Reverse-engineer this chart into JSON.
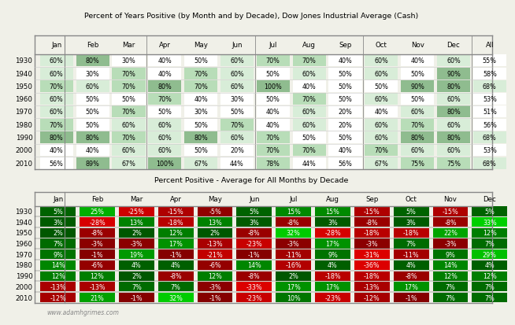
{
  "title1": "Percent of Years Positive (by Month and by Decade), Dow Jones Industrial Average (Cash)",
  "title2": "Percent Positive - Average for All Months by Decade",
  "watermark": "www.adamhgrimes.com",
  "cols1": [
    "Jan",
    "Feb",
    "Mar",
    "Apr",
    "May",
    "Jun",
    "Jul",
    "Aug",
    "Sep",
    "Oct",
    "Nov",
    "Dec",
    "All"
  ],
  "cols2": [
    "Jan",
    "Feb",
    "Mar",
    "Apr",
    "May",
    "Jun",
    "Jul",
    "Aug",
    "Sep",
    "Oct",
    "Nov",
    "Dec"
  ],
  "rows": [
    "1930",
    "1940",
    "1950",
    "1960",
    "1970",
    "1980",
    "1990",
    "2000",
    "2010"
  ],
  "table1": [
    [
      60,
      80,
      30,
      40,
      50,
      60,
      70,
      70,
      40,
      60,
      40,
      60,
      55
    ],
    [
      60,
      30,
      70,
      40,
      70,
      60,
      50,
      60,
      50,
      60,
      50,
      90,
      58
    ],
    [
      70,
      60,
      70,
      80,
      70,
      60,
      100,
      40,
      50,
      50,
      90,
      80,
      68
    ],
    [
      60,
      50,
      50,
      70,
      40,
      30,
      50,
      70,
      50,
      60,
      50,
      60,
      53
    ],
    [
      60,
      50,
      70,
      50,
      30,
      50,
      40,
      60,
      20,
      40,
      60,
      80,
      51
    ],
    [
      70,
      50,
      60,
      60,
      50,
      70,
      40,
      60,
      20,
      60,
      70,
      60,
      56
    ],
    [
      80,
      80,
      70,
      60,
      80,
      60,
      70,
      50,
      50,
      60,
      80,
      80,
      68
    ],
    [
      40,
      40,
      60,
      60,
      50,
      20,
      70,
      70,
      40,
      70,
      60,
      60,
      53
    ],
    [
      56,
      89,
      67,
      100,
      67,
      44,
      78,
      44,
      56,
      67,
      75,
      75,
      68
    ]
  ],
  "table2": [
    [
      5,
      25,
      -25,
      -15,
      -5,
      5,
      15,
      15,
      -15,
      5,
      -15,
      5
    ],
    [
      3,
      -28,
      13,
      -18,
      13,
      3,
      -8,
      3,
      -8,
      3,
      -8,
      33
    ],
    [
      2,
      -8,
      2,
      12,
      2,
      -8,
      32,
      -28,
      -18,
      -18,
      22,
      12
    ],
    [
      7,
      -3,
      -3,
      17,
      -13,
      -23,
      -3,
      17,
      -3,
      7,
      -3,
      7
    ],
    [
      9,
      -1,
      19,
      -1,
      -21,
      -1,
      -11,
      9,
      -31,
      -11,
      9,
      29
    ],
    [
      14,
      -6,
      4,
      4,
      -6,
      14,
      -16,
      4,
      -36,
      4,
      14,
      4
    ],
    [
      12,
      12,
      2,
      -8,
      12,
      -8,
      2,
      -18,
      -18,
      -8,
      12,
      12
    ],
    [
      -13,
      -13,
      7,
      7,
      -3,
      -33,
      17,
      17,
      -13,
      17,
      7,
      7
    ],
    [
      -12,
      21,
      -1,
      32,
      -1,
      -23,
      10,
      -23,
      -12,
      -1,
      7,
      7
    ]
  ],
  "bg_color": "#f0f0e8"
}
